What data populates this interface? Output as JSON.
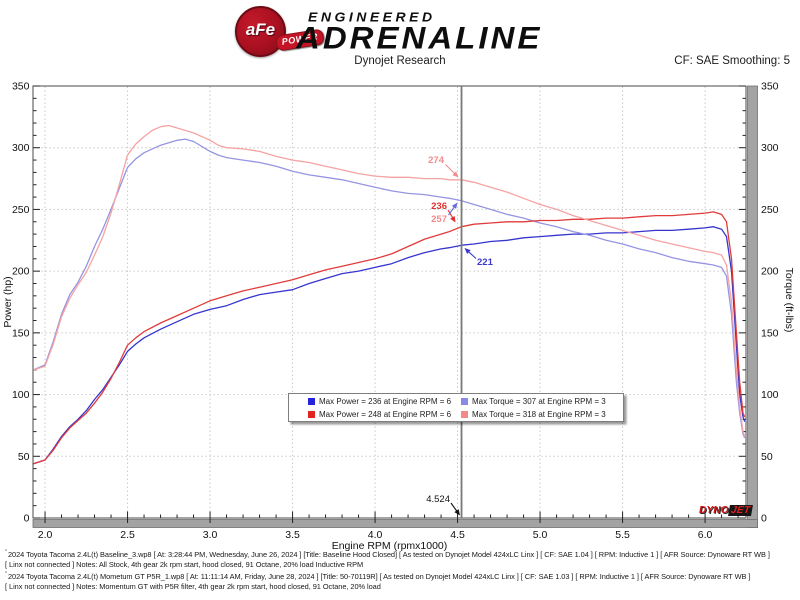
{
  "header": {
    "logo_afe": "aFe",
    "logo_registered": "®",
    "logo_power": "POWER",
    "logo_line1": "ENGINEERED",
    "logo_line2": "ADRENALINE",
    "subtitle": "Dynojet Research",
    "cf_label": "CF: SAE Smoothing: 5"
  },
  "chart_data": {
    "type": "line",
    "title": "Dynojet Research",
    "xlabel": "Engine RPM (rpmx1000)",
    "ylabel_left": "Power (hp)",
    "ylabel_right": "Torque (ft-lbs)",
    "xlim": [
      1.927,
      6.248
    ],
    "ylim": [
      0,
      350
    ],
    "x_tick_labels": [
      "2.0",
      "2.5",
      "3.0",
      "3.5",
      "4.0",
      "4.5",
      "5.0",
      "5.5",
      "6.0"
    ],
    "x_tick_values": [
      2.0,
      2.5,
      3.0,
      3.5,
      4.0,
      4.5,
      5.0,
      5.5,
      6.0
    ],
    "y_tick_labels": [
      "0",
      "50",
      "100",
      "150",
      "200",
      "250",
      "300",
      "350"
    ],
    "y_tick_values": [
      0,
      50,
      100,
      150,
      200,
      250,
      300,
      350
    ],
    "grid": "dotted",
    "cursor_rpm": 4.524,
    "cursor_values": {
      "momentum_torque": 274,
      "baseline_torque": 257,
      "momentum_power": 236,
      "baseline_power": 221
    },
    "series": [
      {
        "name": "baseline-power",
        "color": "#3535cf",
        "axis": "left",
        "points": [
          [
            1.93,
            44
          ],
          [
            2.0,
            47
          ],
          [
            2.05,
            56
          ],
          [
            2.1,
            66
          ],
          [
            2.15,
            74
          ],
          [
            2.2,
            80
          ],
          [
            2.25,
            87
          ],
          [
            2.3,
            96
          ],
          [
            2.35,
            104
          ],
          [
            2.4,
            114
          ],
          [
            2.45,
            124
          ],
          [
            2.5,
            135
          ],
          [
            2.55,
            141
          ],
          [
            2.6,
            146
          ],
          [
            2.7,
            153
          ],
          [
            2.8,
            159
          ],
          [
            2.9,
            165
          ],
          [
            3.0,
            169
          ],
          [
            3.1,
            172
          ],
          [
            3.2,
            177
          ],
          [
            3.3,
            181
          ],
          [
            3.4,
            183
          ],
          [
            3.5,
            185
          ],
          [
            3.6,
            190
          ],
          [
            3.7,
            194
          ],
          [
            3.8,
            198
          ],
          [
            3.9,
            200
          ],
          [
            4.0,
            203
          ],
          [
            4.1,
            206
          ],
          [
            4.2,
            211
          ],
          [
            4.3,
            215
          ],
          [
            4.4,
            218
          ],
          [
            4.45,
            219
          ],
          [
            4.524,
            221
          ],
          [
            4.6,
            222
          ],
          [
            4.7,
            224
          ],
          [
            4.8,
            225
          ],
          [
            4.9,
            227
          ],
          [
            5.0,
            228
          ],
          [
            5.1,
            229
          ],
          [
            5.2,
            230
          ],
          [
            5.3,
            230
          ],
          [
            5.4,
            231
          ],
          [
            5.5,
            231
          ],
          [
            5.6,
            232
          ],
          [
            5.7,
            233
          ],
          [
            5.8,
            233
          ],
          [
            5.9,
            234
          ],
          [
            6.0,
            235
          ],
          [
            6.05,
            236
          ],
          [
            6.1,
            234
          ],
          [
            6.13,
            228
          ],
          [
            6.16,
            200
          ],
          [
            6.19,
            140
          ],
          [
            6.21,
            100
          ],
          [
            6.23,
            82
          ],
          [
            6.24,
            78
          ]
        ]
      },
      {
        "name": "baseline-torque",
        "color": "#9595e2",
        "axis": "right",
        "points": [
          [
            1.93,
            120
          ],
          [
            2.0,
            124
          ],
          [
            2.05,
            143
          ],
          [
            2.1,
            165
          ],
          [
            2.15,
            181
          ],
          [
            2.2,
            191
          ],
          [
            2.25,
            204
          ],
          [
            2.3,
            220
          ],
          [
            2.35,
            234
          ],
          [
            2.4,
            250
          ],
          [
            2.45,
            267
          ],
          [
            2.5,
            284
          ],
          [
            2.55,
            291
          ],
          [
            2.6,
            296
          ],
          [
            2.7,
            302
          ],
          [
            2.8,
            306
          ],
          [
            2.85,
            307
          ],
          [
            2.9,
            305
          ],
          [
            3.0,
            297
          ],
          [
            3.05,
            294
          ],
          [
            3.1,
            292
          ],
          [
            3.2,
            290
          ],
          [
            3.3,
            288
          ],
          [
            3.4,
            285
          ],
          [
            3.5,
            281
          ],
          [
            3.6,
            278
          ],
          [
            3.7,
            276
          ],
          [
            3.8,
            274
          ],
          [
            3.9,
            271
          ],
          [
            4.0,
            268
          ],
          [
            4.1,
            265
          ],
          [
            4.2,
            263
          ],
          [
            4.3,
            262
          ],
          [
            4.4,
            260
          ],
          [
            4.45,
            259
          ],
          [
            4.524,
            257
          ],
          [
            4.6,
            254
          ],
          [
            4.7,
            250
          ],
          [
            4.8,
            246
          ],
          [
            4.9,
            243
          ],
          [
            5.0,
            239
          ],
          [
            5.1,
            236
          ],
          [
            5.2,
            232
          ],
          [
            5.3,
            229
          ],
          [
            5.4,
            225
          ],
          [
            5.5,
            222
          ],
          [
            5.6,
            218
          ],
          [
            5.7,
            215
          ],
          [
            5.8,
            211
          ],
          [
            5.9,
            208
          ],
          [
            6.0,
            206
          ],
          [
            6.05,
            205
          ],
          [
            6.1,
            203
          ],
          [
            6.13,
            196
          ],
          [
            6.16,
            165
          ],
          [
            6.19,
            110
          ],
          [
            6.21,
            85
          ],
          [
            6.23,
            68
          ],
          [
            6.24,
            65
          ]
        ]
      },
      {
        "name": "momentum-power",
        "color": "#e13b3b",
        "axis": "left",
        "points": [
          [
            1.93,
            44
          ],
          [
            2.0,
            47
          ],
          [
            2.05,
            55
          ],
          [
            2.1,
            65
          ],
          [
            2.15,
            73
          ],
          [
            2.2,
            79
          ],
          [
            2.25,
            85
          ],
          [
            2.3,
            93
          ],
          [
            2.35,
            102
          ],
          [
            2.4,
            113
          ],
          [
            2.45,
            126
          ],
          [
            2.5,
            140
          ],
          [
            2.55,
            146
          ],
          [
            2.6,
            151
          ],
          [
            2.7,
            158
          ],
          [
            2.8,
            164
          ],
          [
            2.9,
            170
          ],
          [
            3.0,
            176
          ],
          [
            3.1,
            180
          ],
          [
            3.2,
            184
          ],
          [
            3.3,
            187
          ],
          [
            3.4,
            190
          ],
          [
            3.5,
            193
          ],
          [
            3.6,
            197
          ],
          [
            3.7,
            201
          ],
          [
            3.8,
            204
          ],
          [
            3.9,
            207
          ],
          [
            4.0,
            210
          ],
          [
            4.1,
            214
          ],
          [
            4.2,
            220
          ],
          [
            4.3,
            226
          ],
          [
            4.4,
            230
          ],
          [
            4.45,
            232
          ],
          [
            4.524,
            236
          ],
          [
            4.6,
            238
          ],
          [
            4.7,
            239
          ],
          [
            4.8,
            240
          ],
          [
            4.9,
            240
          ],
          [
            5.0,
            241
          ],
          [
            5.1,
            241
          ],
          [
            5.2,
            242
          ],
          [
            5.3,
            242
          ],
          [
            5.4,
            243
          ],
          [
            5.5,
            243
          ],
          [
            5.6,
            244
          ],
          [
            5.7,
            245
          ],
          [
            5.8,
            245
          ],
          [
            5.9,
            246
          ],
          [
            6.0,
            247
          ],
          [
            6.05,
            248
          ],
          [
            6.1,
            246
          ],
          [
            6.13,
            240
          ],
          [
            6.16,
            210
          ],
          [
            6.19,
            150
          ],
          [
            6.21,
            110
          ],
          [
            6.23,
            85
          ],
          [
            6.24,
            82
          ]
        ]
      },
      {
        "name": "momentum-torque",
        "color": "#f5a3a3",
        "axis": "right",
        "points": [
          [
            1.93,
            120
          ],
          [
            2.0,
            123
          ],
          [
            2.05,
            141
          ],
          [
            2.1,
            163
          ],
          [
            2.15,
            178
          ],
          [
            2.2,
            189
          ],
          [
            2.25,
            199
          ],
          [
            2.3,
            213
          ],
          [
            2.35,
            228
          ],
          [
            2.4,
            247
          ],
          [
            2.45,
            270
          ],
          [
            2.5,
            294
          ],
          [
            2.55,
            303
          ],
          [
            2.6,
            309
          ],
          [
            2.65,
            314
          ],
          [
            2.7,
            317
          ],
          [
            2.75,
            318
          ],
          [
            2.8,
            316
          ],
          [
            2.9,
            312
          ],
          [
            3.0,
            306
          ],
          [
            3.05,
            302
          ],
          [
            3.1,
            300
          ],
          [
            3.2,
            299
          ],
          [
            3.3,
            297
          ],
          [
            3.4,
            293
          ],
          [
            3.5,
            290
          ],
          [
            3.55,
            289
          ],
          [
            3.6,
            288
          ],
          [
            3.7,
            285
          ],
          [
            3.8,
            282
          ],
          [
            3.9,
            279
          ],
          [
            4.0,
            277
          ],
          [
            4.1,
            276
          ],
          [
            4.2,
            276
          ],
          [
            4.3,
            275
          ],
          [
            4.4,
            275
          ],
          [
            4.45,
            274
          ],
          [
            4.524,
            274
          ],
          [
            4.6,
            272
          ],
          [
            4.7,
            268
          ],
          [
            4.8,
            264
          ],
          [
            4.9,
            259
          ],
          [
            5.0,
            254
          ],
          [
            5.1,
            250
          ],
          [
            5.2,
            245
          ],
          [
            5.3,
            241
          ],
          [
            5.4,
            237
          ],
          [
            5.5,
            233
          ],
          [
            5.6,
            229
          ],
          [
            5.7,
            225
          ],
          [
            5.8,
            222
          ],
          [
            5.9,
            219
          ],
          [
            6.0,
            216
          ],
          [
            6.05,
            215
          ],
          [
            6.1,
            213
          ],
          [
            6.13,
            205
          ],
          [
            6.16,
            175
          ],
          [
            6.19,
            120
          ],
          [
            6.21,
            90
          ],
          [
            6.23,
            70
          ],
          [
            6.24,
            66
          ]
        ]
      }
    ],
    "annotations": [
      {
        "text": "274",
        "color": "#f28c8c",
        "arrow_color": "#f28c8c"
      },
      {
        "text": "236",
        "color": "#e03030",
        "arrow_color": "#e03030"
      },
      {
        "text": "257",
        "color": "#f28c8c",
        "arrow_color": "#6a6ae0"
      },
      {
        "text": "221",
        "color": "#3a3ad0",
        "arrow_color": "#3a3ad0"
      },
      {
        "text": "4.524",
        "color": "#111111",
        "arrow_color": "#111111"
      }
    ],
    "legend": [
      {
        "color": "#2424dd",
        "label": "Max Power = 236 at Engine RPM = 6"
      },
      {
        "color": "#8989e8",
        "label": "Max Torque = 307 at Engine RPM = 3"
      },
      {
        "color": "#e32222",
        "label": "Max Power = 248 at Engine RPM = 6"
      },
      {
        "color": "#f28888",
        "label": "Max Torque = 318 at Engine RPM = 3"
      }
    ]
  },
  "watermark": {
    "dyno": "DYNO",
    "jet": "JET"
  },
  "footer": {
    "marker": "ˮ",
    "lines": [
      "2024 Toyota Tacoma 2.4L(t) Baseline_3.wp8 [ At: 3:28:44 PM, Wednesday, June 26, 2024 ] [Title: Baseline Hood Closed]  [ As tested on Dynojet Model 424xLC Linx ] [ CF: SAE 1.04 ] [ RPM: Inductive 1 ] [ AFR Source: Dynoware RT WB ]",
      "[ Linx not connected ] Notes: All Stock, 4th gear 2k rpm start, hood closed, 91 Octane, 20% load Inductive RPM",
      "2024 Toyota Tacoma 2.4L(t) Mometum GT P5R_1.wp8 [ At: 11:11:14 AM, Friday, June 28, 2024 ] [Title: 50-70119R]  [ As tested on Dynojet Model 424xLC Linx ] [ CF: SAE 1.03 ] [ RPM: Inductive 1 ] [ AFR Source: Dynoware RT WB ]",
      "[ Linx not connected ] Notes: Momentum GT with P5R filter, 4th gear 2k rpm start, hood closed, 91 Octane, 20% load"
    ]
  }
}
